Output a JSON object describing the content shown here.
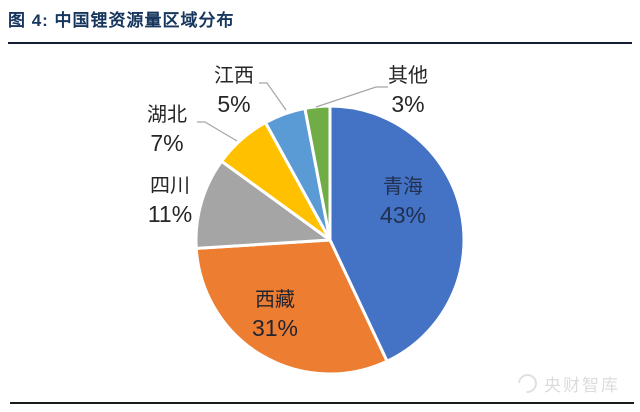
{
  "figure": {
    "title": "图 4: 中国锂资源量区域分布"
  },
  "chart_data": {
    "type": "pie",
    "title": "中国锂资源量区域分布",
    "unit": "percent",
    "start_angle_deg": 0,
    "direction": "clockwise",
    "legend_position": "none",
    "slices": [
      {
        "id": "qinghai",
        "name": "青海",
        "value": 43,
        "pct_label": "43%",
        "color": "#4472C4",
        "label_position": "inside"
      },
      {
        "id": "xizang",
        "name": "西藏",
        "value": 31,
        "pct_label": "31%",
        "color": "#ED7D31",
        "label_position": "inside"
      },
      {
        "id": "sichuan",
        "name": "四川",
        "value": 11,
        "pct_label": "11%",
        "color": "#A5A5A5",
        "label_position": "outside"
      },
      {
        "id": "hubei",
        "name": "湖北",
        "value": 7,
        "pct_label": "7%",
        "color": "#FFC000",
        "label_position": "outside"
      },
      {
        "id": "jiangxi",
        "name": "江西",
        "value": 5,
        "pct_label": "5%",
        "color": "#5B9BD5",
        "label_position": "outside"
      },
      {
        "id": "qita",
        "name": "其他",
        "value": 3,
        "pct_label": "3%",
        "color": "#70AD47",
        "label_position": "outside"
      }
    ],
    "colors": {
      "title": "#17365D",
      "label_text": "#262626",
      "leader_line": "#a6a6a6",
      "slice_border": "#ffffff"
    }
  },
  "watermark": {
    "text": "央财智库"
  }
}
